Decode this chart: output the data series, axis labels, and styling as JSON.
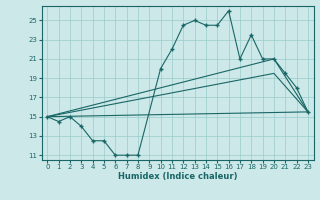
{
  "xlabel": "Humidex (Indice chaleur)",
  "xlim": [
    -0.5,
    23.5
  ],
  "ylim": [
    10.5,
    26.5
  ],
  "yticks": [
    11,
    13,
    15,
    17,
    19,
    21,
    23,
    25
  ],
  "xticks": [
    0,
    1,
    2,
    3,
    4,
    5,
    6,
    7,
    8,
    9,
    10,
    11,
    12,
    13,
    14,
    15,
    16,
    17,
    18,
    19,
    20,
    21,
    22,
    23
  ],
  "bg_color": "#cce8e8",
  "line_color": "#1a6666",
  "grid_color": "#99cccc",
  "line1_x": [
    0,
    1,
    2,
    3,
    4,
    5,
    6,
    7,
    8,
    10,
    11,
    12,
    13,
    14,
    15,
    16,
    17,
    18,
    19,
    20,
    21,
    22,
    23
  ],
  "line1_y": [
    15,
    14.5,
    15,
    14,
    12.5,
    12.5,
    11,
    11,
    11,
    20,
    22,
    24.5,
    25,
    24.5,
    24.5,
    26,
    21,
    23.5,
    21,
    21,
    19.5,
    18,
    15.5
  ],
  "line2_x": [
    0,
    20,
    23
  ],
  "line2_y": [
    15,
    19.5,
    15.5
  ],
  "line3_x": [
    0,
    20,
    23
  ],
  "line3_y": [
    15,
    21,
    15.5
  ],
  "line4_x": [
    0,
    23
  ],
  "line4_y": [
    15,
    15.5
  ]
}
